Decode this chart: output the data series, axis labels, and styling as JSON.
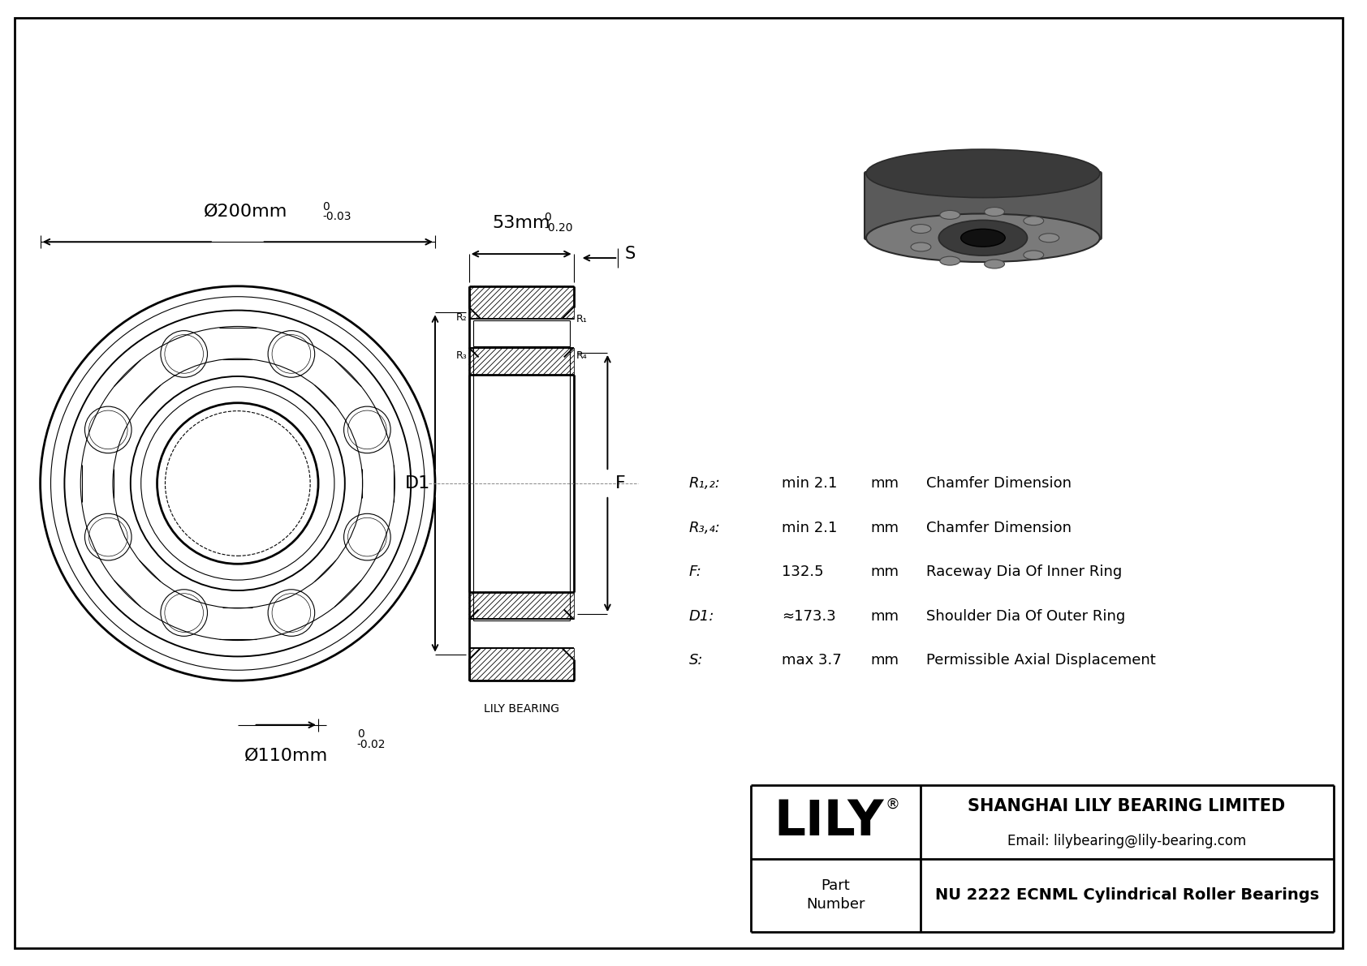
{
  "bg_color": "#ffffff",
  "line_color": "#000000",
  "company": "SHANGHAI LILY BEARING LIMITED",
  "email": "Email: lilybearing@lily-bearing.com",
  "part_number": "NU 2222 ECNML Cylindrical Roller Bearings",
  "dim_od_label": "Ø200mm",
  "dim_od_tol_top": "0",
  "dim_od_tol_bot": "-0.03",
  "dim_id_label": "Ø110mm",
  "dim_id_tol_top": "0",
  "dim_id_tol_bot": "-0.02",
  "dim_w_label": "53mm",
  "dim_w_tol_top": "0",
  "dim_w_tol_bot": "-0.20",
  "label_D1": "D1",
  "label_F": "F",
  "label_S": "S",
  "label_R1": "R₁",
  "label_R2": "R₂",
  "label_R3": "R₃",
  "label_R4": "R₄",
  "specs": [
    {
      "param": "R₁,₂:",
      "value": "min 2.1",
      "unit": "mm",
      "desc": "Chamfer Dimension"
    },
    {
      "param": "R₃,₄:",
      "value": "min 2.1",
      "unit": "mm",
      "desc": "Chamfer Dimension"
    },
    {
      "param": "F:",
      "value": "132.5",
      "unit": "mm",
      "desc": "Raceway Dia Of Inner Ring"
    },
    {
      "param": "D1:",
      "value": "≈173.3",
      "unit": "mm",
      "desc": "Shoulder Dia Of Outer Ring"
    },
    {
      "param": "S:",
      "value": "max 3.7",
      "unit": "mm",
      "desc": "Permissible Axial Displacement"
    }
  ],
  "watermark": "LILY BEARING",
  "lily_brand": "LILY"
}
